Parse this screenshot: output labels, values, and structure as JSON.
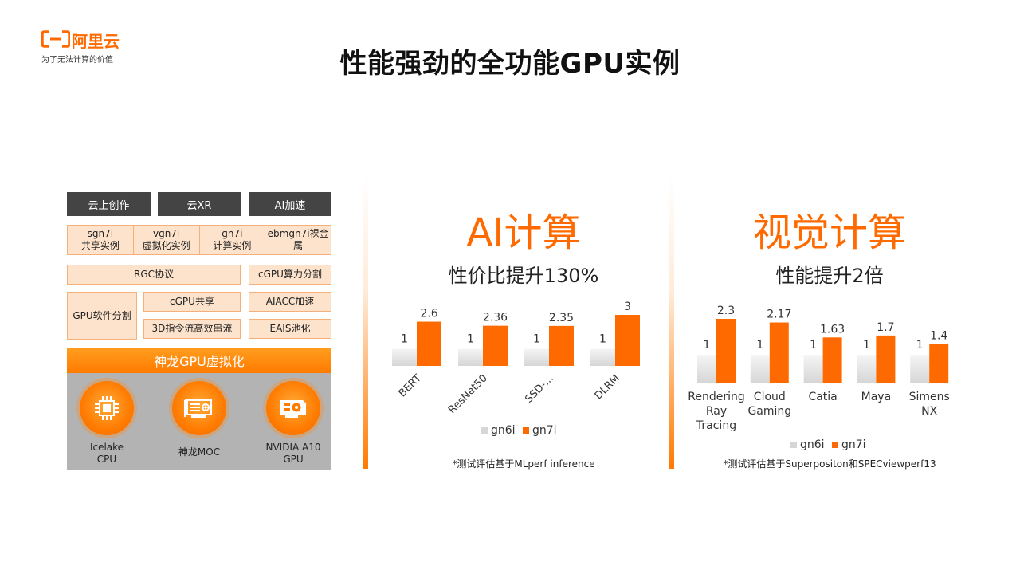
{
  "logo": {
    "name": "阿里云",
    "slogan": "为了无法计算的价值"
  },
  "title": "性能强劲的全功能GPU实例",
  "diagram": {
    "top_row": [
      "云上创作",
      "云XR",
      "AI加速"
    ],
    "instances": [
      {
        "line1": "sgn7i",
        "line2": "共享实例"
      },
      {
        "line1": "vgn7i",
        "line2": "虚拟化实例"
      },
      {
        "line1": "gn7i",
        "line2": "计算实例"
      },
      {
        "line1": "ebmgn7i裸金",
        "line2": "属"
      }
    ],
    "rgc": "RGC协议",
    "cgpu_compute_split": "cGPU算力分割",
    "gpu_software_split": "GPU软件分割",
    "cgpu_share": "cGPU共享",
    "aiacc": "AIACC加速",
    "stream_3d": "3D指令流高效串流",
    "eais": "EAIS池化",
    "shenlong_bar": "神龙GPU虚拟化",
    "hardware": [
      {
        "icon": "cpu-chip-icon",
        "label1": "Icelake",
        "label2": "CPU"
      },
      {
        "icon": "moc-card-icon",
        "label1": "神龙MOC",
        "label2": ""
      },
      {
        "icon": "gpu-card-icon",
        "label1": "NVIDIA A10",
        "label2": "GPU"
      }
    ]
  },
  "ai_panel": {
    "title": "AI计算",
    "subtitle": "性价比提升130%",
    "footnote": "*测试评估基于MLperf inference"
  },
  "vision_panel": {
    "title": "视觉计算",
    "subtitle": "性能提升2倍",
    "footnote": "*测试评估基于Superpositon和SPECviewperf13"
  },
  "colors": {
    "accent": "#ff6a00",
    "gn6i": "#e0e0e0",
    "gn7i": "#ff6a00"
  },
  "chart_data": [
    {
      "type": "bar",
      "categories": [
        "BERT",
        "ResNet50",
        "SSD-...",
        "DLRM"
      ],
      "series": [
        {
          "name": "gn6i",
          "values": [
            1,
            1,
            1,
            1
          ]
        },
        {
          "name": "gn7i",
          "values": [
            2.6,
            2.36,
            2.35,
            3
          ]
        }
      ],
      "ylim": [
        0,
        3
      ],
      "legend": "bottom",
      "grid": false
    },
    {
      "type": "bar",
      "categories": [
        "Rendering Ray Tracing",
        "Cloud Gaming",
        "Catia",
        "Maya",
        "Simens NX"
      ],
      "series": [
        {
          "name": "gn6i",
          "values": [
            1,
            1,
            1,
            1,
            1
          ]
        },
        {
          "name": "gn7i",
          "values": [
            2.3,
            2.17,
            1.63,
            1.7,
            1.4
          ]
        }
      ],
      "ylim": [
        0,
        2.3
      ],
      "legend": "bottom",
      "grid": false
    }
  ]
}
